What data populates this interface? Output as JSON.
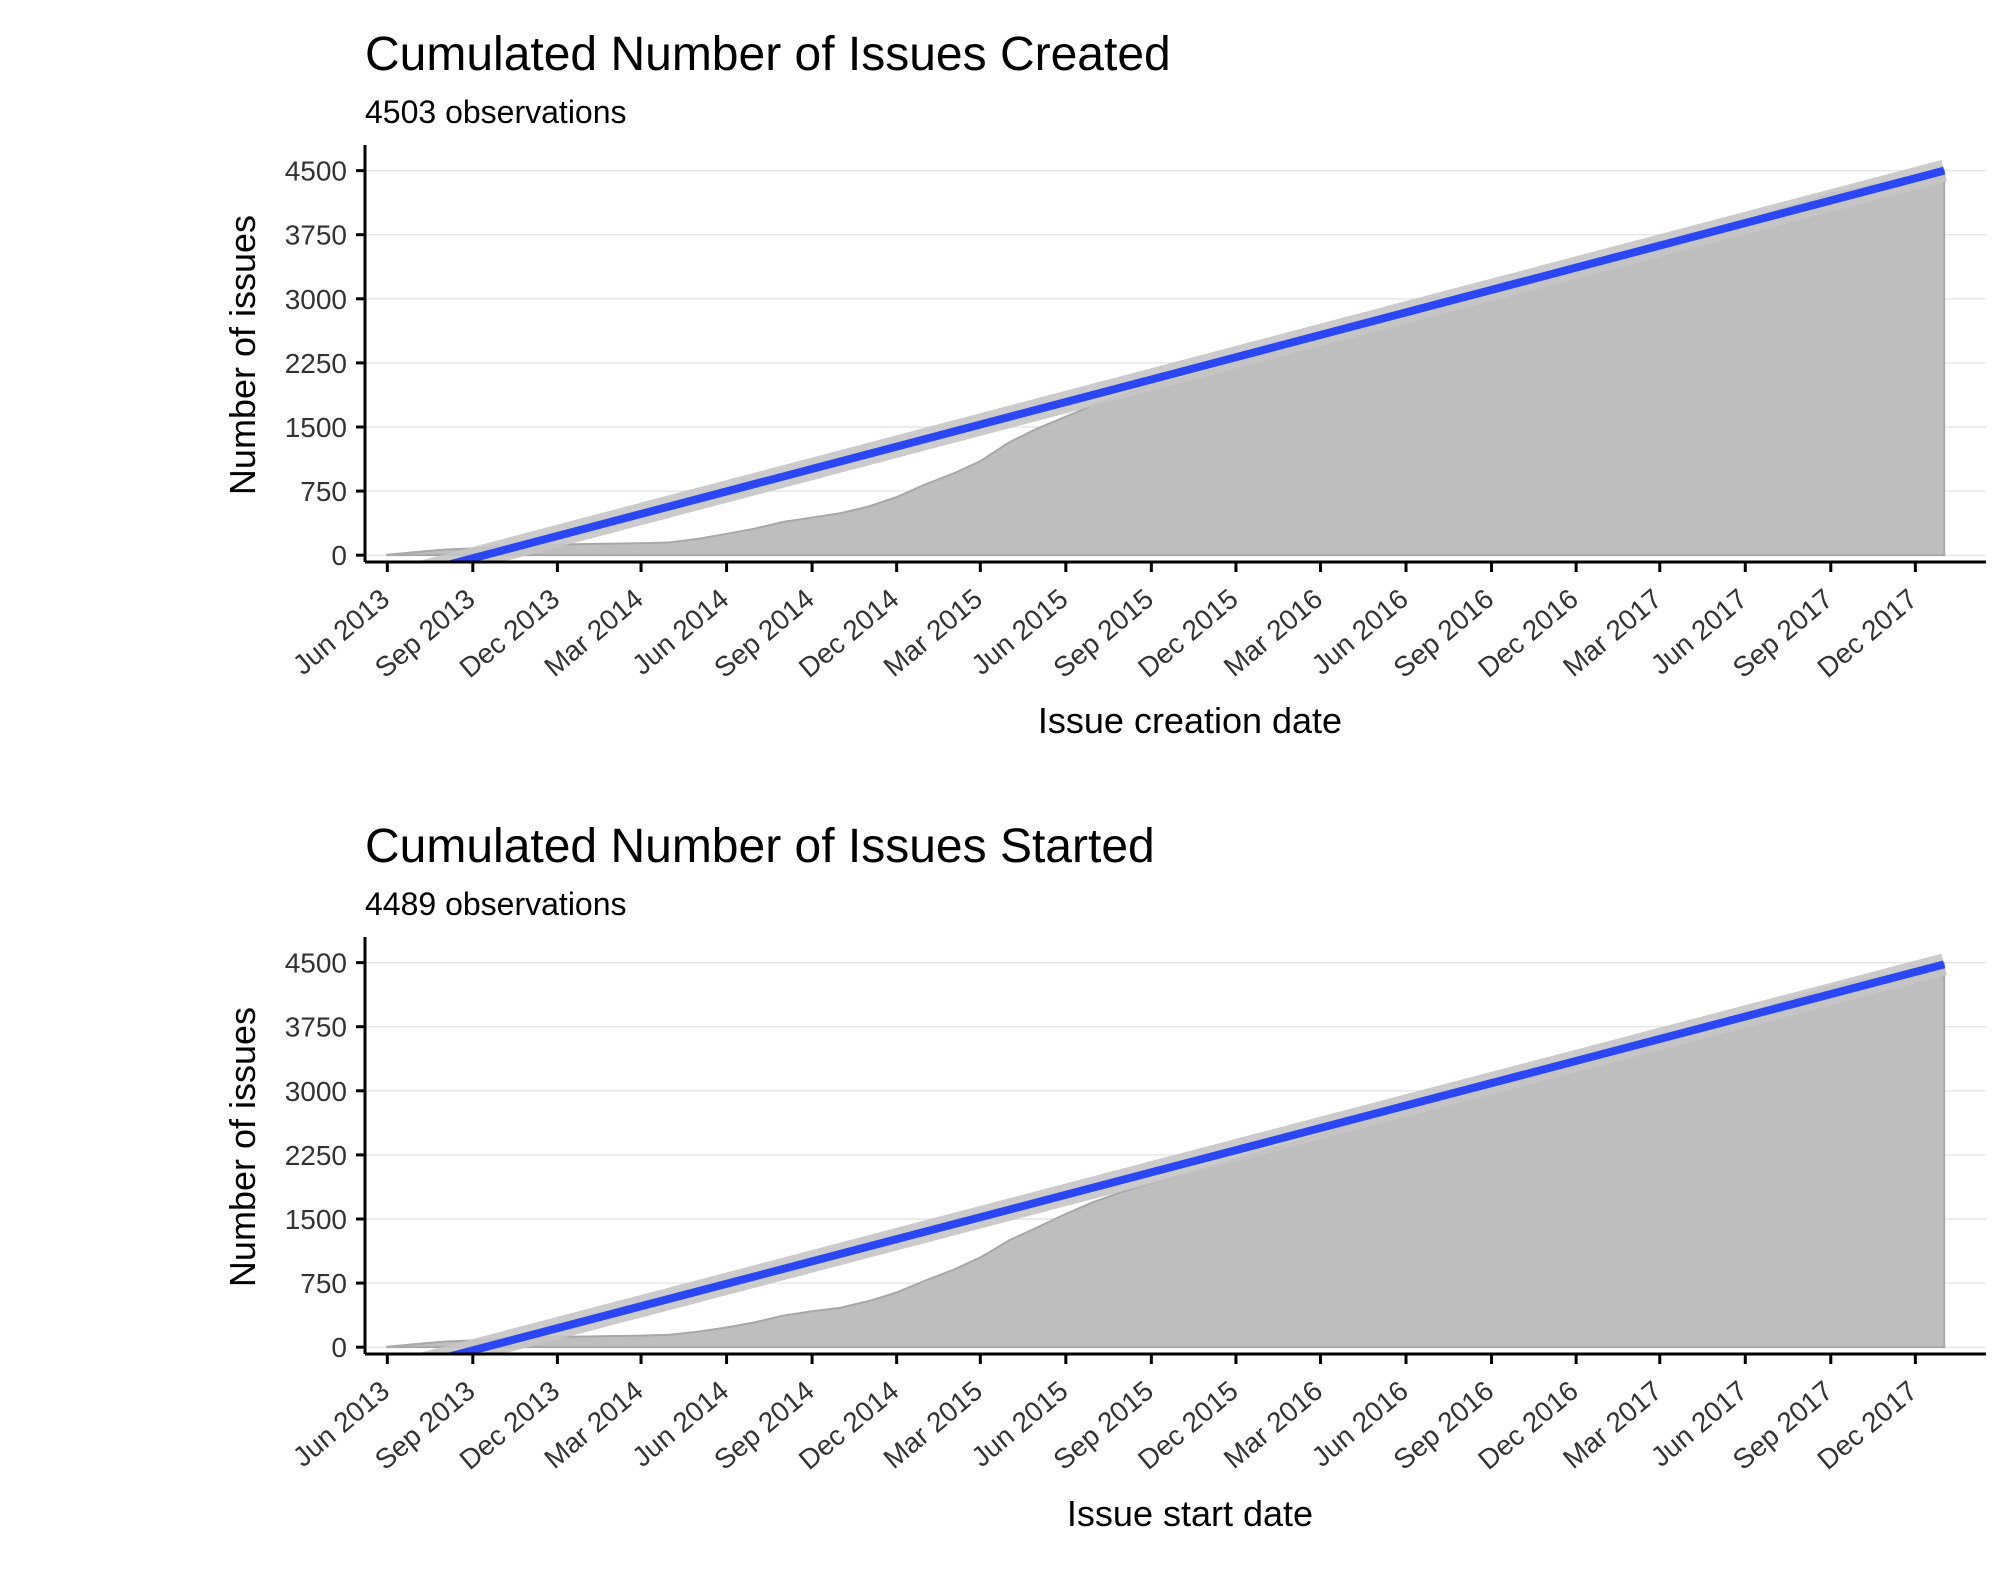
{
  "chart_data": [
    {
      "type": "area",
      "title": "Cumulated Number of Issues Created",
      "subtitle": "4503 observations",
      "xlabel": "Issue creation date",
      "ylabel": "Number of issues",
      "ylim": [
        -80,
        4800
      ],
      "yticks": [
        "0",
        "750",
        "1500",
        "2250",
        "3000",
        "3750",
        "4500"
      ],
      "xlim": [
        "2013-05-08",
        "2018-02-15"
      ],
      "xticks": [
        {
          "date": "2013-06-01",
          "label": "Jun 2013"
        },
        {
          "date": "2013-09-01",
          "label": "Sep 2013"
        },
        {
          "date": "2013-12-01",
          "label": "Dec 2013"
        },
        {
          "date": "2014-03-01",
          "label": "Mar 2014"
        },
        {
          "date": "2014-06-01",
          "label": "Jun 2014"
        },
        {
          "date": "2014-09-01",
          "label": "Sep 2014"
        },
        {
          "date": "2014-12-01",
          "label": "Dec 2014"
        },
        {
          "date": "2015-03-01",
          "label": "Mar 2015"
        },
        {
          "date": "2015-06-01",
          "label": "Jun 2015"
        },
        {
          "date": "2015-09-01",
          "label": "Sep 2015"
        },
        {
          "date": "2015-12-01",
          "label": "Dec 2015"
        },
        {
          "date": "2016-03-01",
          "label": "Mar 2016"
        },
        {
          "date": "2016-06-01",
          "label": "Jun 2016"
        },
        {
          "date": "2016-09-01",
          "label": "Sep 2016"
        },
        {
          "date": "2016-12-01",
          "label": "Dec 2016"
        },
        {
          "date": "2017-03-01",
          "label": "Mar 2017"
        },
        {
          "date": "2017-06-01",
          "label": "Jun 2017"
        },
        {
          "date": "2017-09-01",
          "label": "Sep 2017"
        },
        {
          "date": "2017-12-01",
          "label": "Dec 2017"
        }
      ],
      "series": [
        {
          "x": [
            "2013-06-01",
            "2013-07-01",
            "2013-08-01",
            "2013-09-01",
            "2013-10-01",
            "2013-11-01",
            "2013-12-01",
            "2014-01-01",
            "2014-02-01",
            "2014-03-01",
            "2014-04-01",
            "2014-05-01",
            "2014-06-01",
            "2014-07-01",
            "2014-08-01",
            "2014-09-01",
            "2014-10-01",
            "2014-11-01",
            "2014-12-01",
            "2015-01-01",
            "2015-02-01",
            "2015-03-01",
            "2015-04-01",
            "2015-05-01",
            "2015-06-01",
            "2015-07-01",
            "2015-08-01",
            "2015-09-01",
            "2015-10-01",
            "2015-11-01",
            "2015-12-01",
            "2016-01-01",
            "2016-02-01",
            "2016-03-01",
            "2016-04-01",
            "2016-05-01",
            "2016-06-01",
            "2016-07-01",
            "2016-08-01",
            "2016-09-01",
            "2016-10-01",
            "2016-11-01",
            "2016-12-01",
            "2017-01-01",
            "2017-02-01",
            "2017-03-01",
            "2017-04-01",
            "2017-05-01",
            "2017-06-01",
            "2017-07-01",
            "2017-08-01",
            "2017-09-01",
            "2017-10-01",
            "2017-11-01",
            "2017-12-01",
            "2018-01-01"
          ],
          "values": [
            5,
            35,
            65,
            80,
            105,
            120,
            125,
            130,
            135,
            140,
            150,
            190,
            250,
            310,
            390,
            440,
            490,
            570,
            680,
            830,
            960,
            1100,
            1320,
            1480,
            1620,
            1760,
            1870,
            1990,
            2060,
            2150,
            2250,
            2340,
            2430,
            2540,
            2640,
            2750,
            2850,
            2940,
            3020,
            3080,
            3140,
            3220,
            3300,
            3390,
            3480,
            3570,
            3670,
            3790,
            3900,
            4020,
            4120,
            4230,
            4300,
            4360,
            4420,
            4503
          ]
        }
      ],
      "trend": {
        "x": [
          "2013-06-01",
          "2018-01-01"
        ],
        "y": [
          -300,
          4500
        ]
      }
    },
    {
      "type": "area",
      "title": "Cumulated Number of Issues Started",
      "subtitle": "4489 observations",
      "xlabel": "Issue start date",
      "ylabel": "Number of issues",
      "ylim": [
        -80,
        4800
      ],
      "yticks": [
        "0",
        "750",
        "1500",
        "2250",
        "3000",
        "3750",
        "4500"
      ],
      "xlim": [
        "2013-05-08",
        "2018-02-15"
      ],
      "xticks": [
        {
          "date": "2013-06-01",
          "label": "Jun 2013"
        },
        {
          "date": "2013-09-01",
          "label": "Sep 2013"
        },
        {
          "date": "2013-12-01",
          "label": "Dec 2013"
        },
        {
          "date": "2014-03-01",
          "label": "Mar 2014"
        },
        {
          "date": "2014-06-01",
          "label": "Jun 2014"
        },
        {
          "date": "2014-09-01",
          "label": "Sep 2014"
        },
        {
          "date": "2014-12-01",
          "label": "Dec 2014"
        },
        {
          "date": "2015-03-01",
          "label": "Mar 2015"
        },
        {
          "date": "2015-06-01",
          "label": "Jun 2015"
        },
        {
          "date": "2015-09-01",
          "label": "Sep 2015"
        },
        {
          "date": "2015-12-01",
          "label": "Dec 2015"
        },
        {
          "date": "2016-03-01",
          "label": "Mar 2016"
        },
        {
          "date": "2016-06-01",
          "label": "Jun 2016"
        },
        {
          "date": "2016-09-01",
          "label": "Sep 2016"
        },
        {
          "date": "2016-12-01",
          "label": "Dec 2016"
        },
        {
          "date": "2017-03-01",
          "label": "Mar 2017"
        },
        {
          "date": "2017-06-01",
          "label": "Jun 2017"
        },
        {
          "date": "2017-09-01",
          "label": "Sep 2017"
        },
        {
          "date": "2017-12-01",
          "label": "Dec 2017"
        }
      ],
      "series": [
        {
          "x": [
            "2013-06-01",
            "2013-07-01",
            "2013-08-01",
            "2013-09-01",
            "2013-10-01",
            "2013-11-01",
            "2013-12-01",
            "2014-01-01",
            "2014-02-01",
            "2014-03-01",
            "2014-04-01",
            "2014-05-01",
            "2014-06-01",
            "2014-07-01",
            "2014-08-01",
            "2014-09-01",
            "2014-10-01",
            "2014-11-01",
            "2014-12-01",
            "2015-01-01",
            "2015-02-01",
            "2015-03-01",
            "2015-04-01",
            "2015-05-01",
            "2015-06-01",
            "2015-07-01",
            "2015-08-01",
            "2015-09-01",
            "2015-10-01",
            "2015-11-01",
            "2015-12-01",
            "2016-01-01",
            "2016-02-01",
            "2016-03-01",
            "2016-04-01",
            "2016-05-01",
            "2016-06-01",
            "2016-07-01",
            "2016-08-01",
            "2016-09-01",
            "2016-10-01",
            "2016-11-01",
            "2016-12-01",
            "2017-01-01",
            "2017-02-01",
            "2017-03-01",
            "2017-04-01",
            "2017-05-01",
            "2017-06-01",
            "2017-07-01",
            "2017-08-01",
            "2017-09-01",
            "2017-10-01",
            "2017-11-01",
            "2017-12-01",
            "2018-01-01"
          ],
          "values": [
            5,
            35,
            65,
            80,
            100,
            115,
            120,
            125,
            130,
            135,
            145,
            180,
            230,
            290,
            370,
            420,
            460,
            540,
            640,
            780,
            910,
            1050,
            1250,
            1400,
            1560,
            1700,
            1820,
            1920,
            2010,
            2100,
            2200,
            2300,
            2390,
            2490,
            2590,
            2700,
            2800,
            2890,
            2970,
            3050,
            3120,
            3200,
            3280,
            3370,
            3460,
            3560,
            3660,
            3780,
            3890,
            4010,
            4110,
            4220,
            4290,
            4350,
            4410,
            4489
          ]
        }
      ],
      "trend": {
        "x": [
          "2013-06-01",
          "2018-01-01"
        ],
        "y": [
          -300,
          4480
        ]
      }
    }
  ]
}
